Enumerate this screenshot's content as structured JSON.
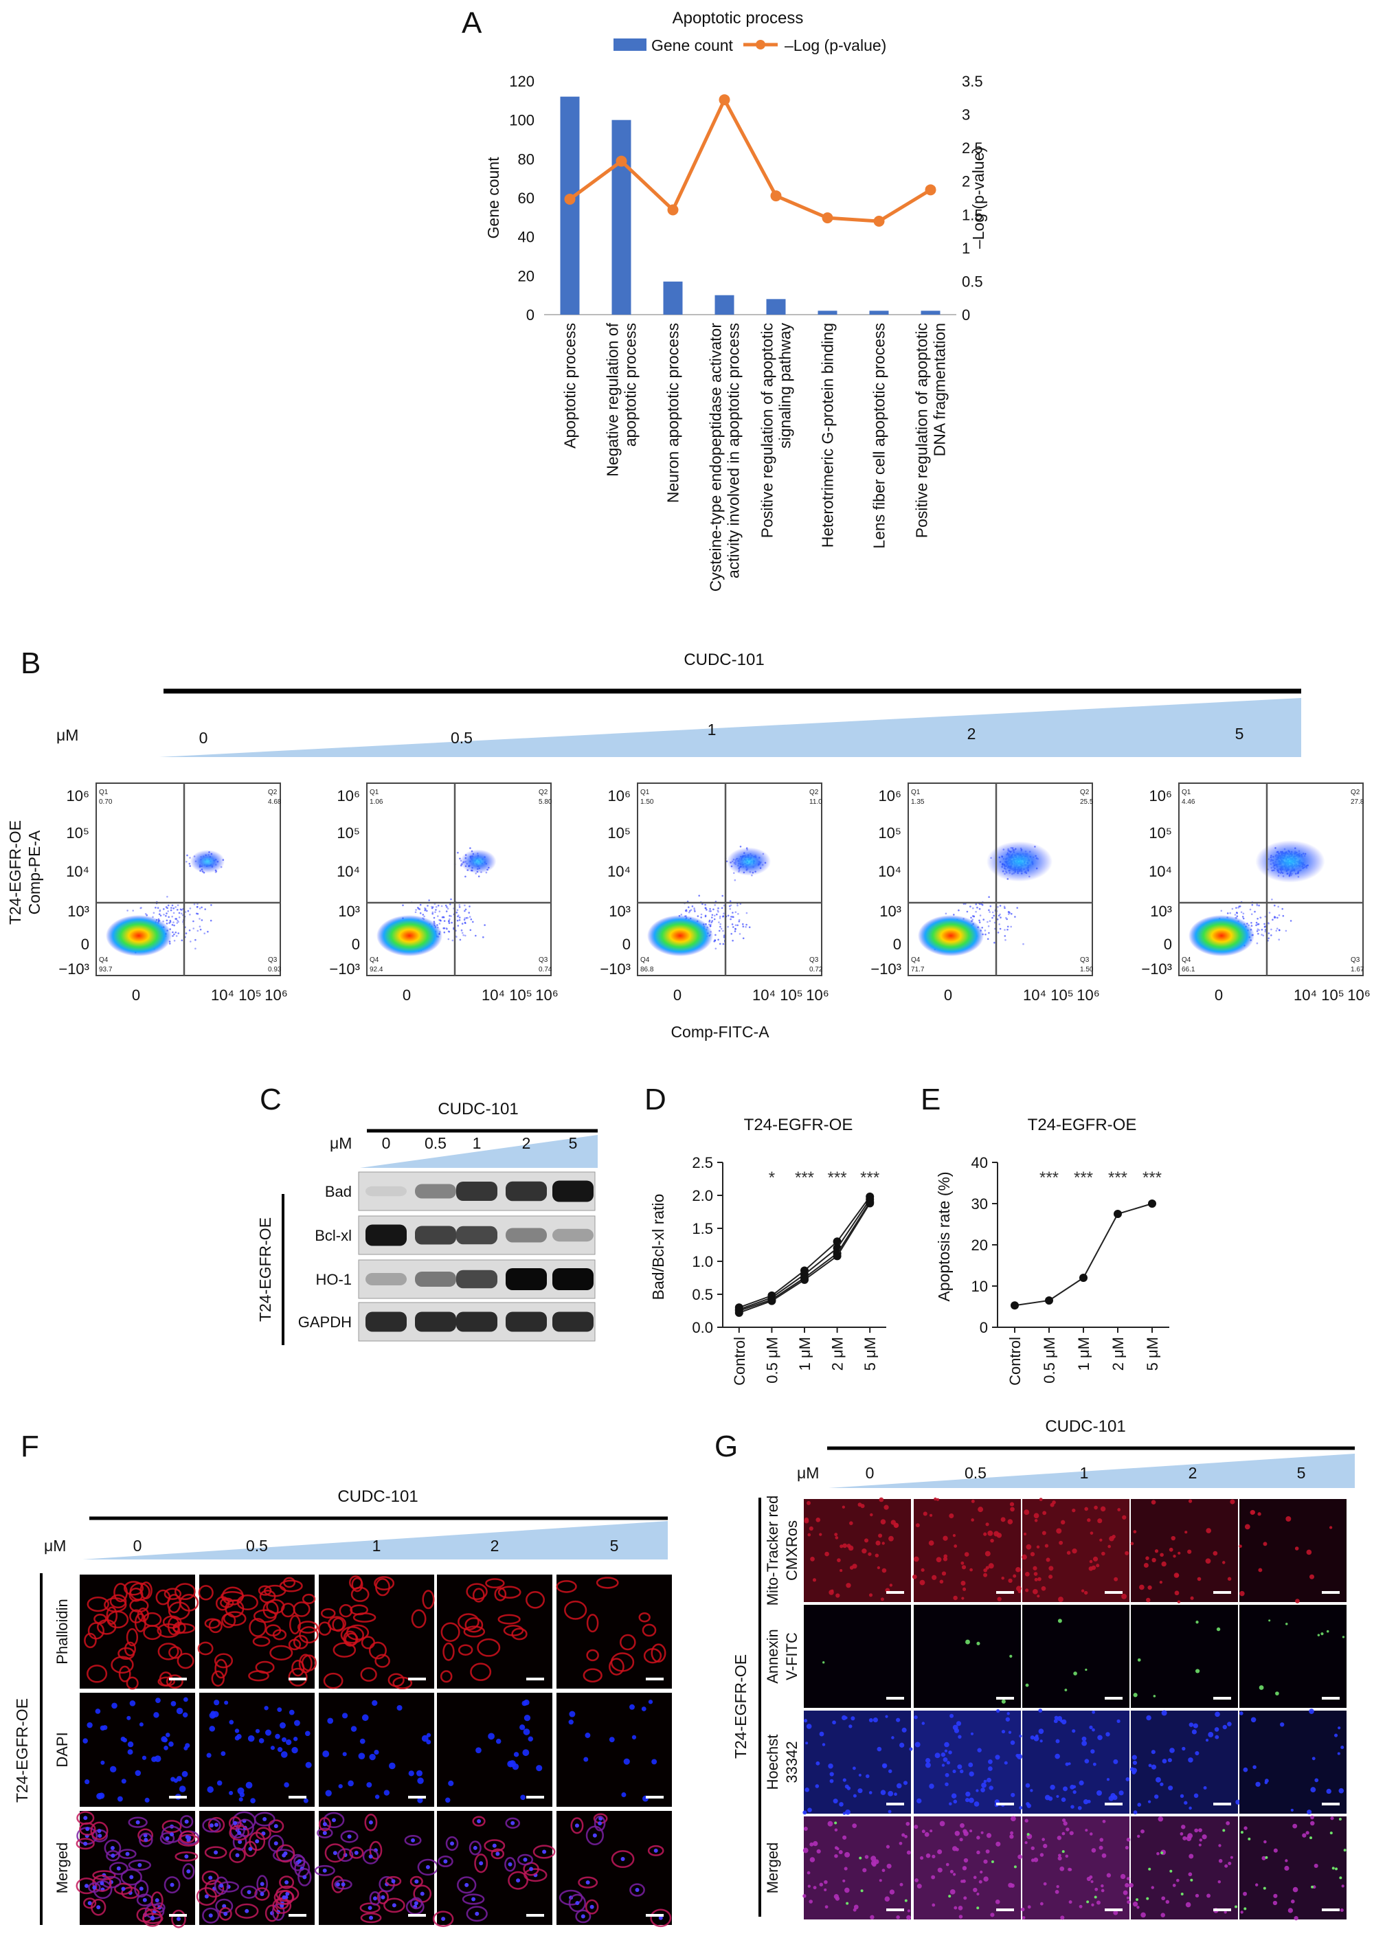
{
  "panels": {
    "A": "A",
    "B": "B",
    "C": "C",
    "D": "D",
    "E": "E",
    "F": "F",
    "G": "G"
  },
  "colors": {
    "bar": "#4472C4",
    "line": "#ED7D31",
    "wedge": "#b3d1ee",
    "phalloidin": "#d0101c",
    "dapi": "#1a2cff",
    "mito": "#c0142a",
    "annexin": "#6fe06a",
    "hoechst": "#2a3bff",
    "merged": "#b02fb8"
  },
  "common": {
    "drug": "CUDC-101",
    "unit": "μM",
    "conc": [
      "0",
      "0.5",
      "1",
      "2",
      "5"
    ],
    "cell_line": "T24-EGFR-OE"
  },
  "chart_data": [
    {
      "id": "A",
      "type": "bar",
      "title": "Apoptotic process",
      "legend": [
        "Gene count",
        "–Log (p-value)"
      ],
      "legend_position": "top",
      "categories": [
        [
          "Apoptotic process"
        ],
        [
          "Negative regulation of",
          "apoptotic process"
        ],
        [
          "Neuron apoptotic process"
        ],
        [
          "Cysteine-type endopeptidase activator",
          "activity involved in apoptotic process"
        ],
        [
          "Positive regulation of apoptotic",
          "signaling pathway"
        ],
        [
          "Heterotrimeric G-protein binding"
        ],
        [
          "Lens fiber cell apoptotic process"
        ],
        [
          "Positive regulation of apoptotic",
          "DNA fragmentation"
        ]
      ],
      "series": [
        {
          "name": "Gene count",
          "type": "bar",
          "axis": "left",
          "values": [
            112,
            100,
            17,
            10,
            8,
            2,
            2,
            2
          ]
        },
        {
          "name": "–Log (p-value)",
          "type": "line",
          "axis": "right",
          "values": [
            1.73,
            2.3,
            1.57,
            3.22,
            1.78,
            1.45,
            1.4,
            1.87
          ]
        }
      ],
      "ylabel": "Gene count",
      "y2label": "–Log (p-value)",
      "ylim": [
        0,
        120
      ],
      "y2lim": [
        0,
        3.5
      ],
      "yticks": [
        "0",
        "20",
        "40",
        "60",
        "80",
        "100",
        "120"
      ],
      "y2ticks": [
        "0",
        "0.5",
        "1",
        "1.5",
        "2",
        "2.5",
        "3",
        "3.5"
      ]
    },
    {
      "id": "B",
      "type": "scatter",
      "xlabel": "Comp-FITC-A",
      "ylabel": [
        "T24-EGFR-OE",
        "Comp-PE-A"
      ],
      "yticks": [
        "10⁶",
        "10⁵",
        "10⁴",
        "10³",
        "0",
        "−10³"
      ],
      "xticks": [
        "0",
        "10⁴",
        "10⁵",
        "10⁶"
      ],
      "plots": [
        {
          "conc": "0",
          "Q1": "0.70",
          "Q2": "4.68",
          "Q3": "0.93",
          "Q4": "93.7"
        },
        {
          "conc": "0.5",
          "Q1": "1.06",
          "Q2": "5.80",
          "Q3": "0.74",
          "Q4": "92.4"
        },
        {
          "conc": "1",
          "Q1": "1.50",
          "Q2": "11.0",
          "Q3": "0.72",
          "Q4": "86.8"
        },
        {
          "conc": "2",
          "Q1": "1.35",
          "Q2": "25.5",
          "Q3": "1.50",
          "Q4": "71.7"
        },
        {
          "conc": "5",
          "Q1": "4.46",
          "Q2": "27.8",
          "Q3": "1.67",
          "Q4": "66.1"
        }
      ],
      "quadrants": [
        "Q1",
        "Q2",
        "Q3",
        "Q4"
      ]
    },
    {
      "id": "D",
      "type": "line",
      "title": "T24-EGFR-OE",
      "ylabel": "Bad/Bcl-xl ratio",
      "categories": [
        "Control",
        "0.5 μM",
        "1 μM",
        "2 μM",
        "5 μM"
      ],
      "ylim": [
        0,
        2.5
      ],
      "yticks": [
        "0.0",
        "0.5",
        "1.0",
        "1.5",
        "2.0",
        "2.5"
      ],
      "series": [
        {
          "values": [
            0.3,
            0.48,
            0.86,
            1.3,
            1.98
          ]
        },
        {
          "values": [
            0.27,
            0.45,
            0.8,
            1.2,
            1.94
          ]
        },
        {
          "values": [
            0.25,
            0.42,
            0.75,
            1.12,
            1.9
          ]
        },
        {
          "values": [
            0.22,
            0.4,
            0.72,
            1.08,
            1.88
          ]
        }
      ],
      "significance": [
        "",
        "*",
        "***",
        "***",
        "***"
      ]
    },
    {
      "id": "E",
      "type": "line",
      "title": "T24-EGFR-OE",
      "ylabel": "Apoptosis rate (%)",
      "categories": [
        "Control",
        "0.5 μM",
        "1 μM",
        "2 μM",
        "5 μM"
      ],
      "ylim": [
        0,
        40
      ],
      "yticks": [
        "0",
        "10",
        "20",
        "30",
        "40"
      ],
      "series": [
        {
          "values": [
            5.3,
            6.5,
            12,
            27.5,
            30
          ]
        }
      ],
      "significance": [
        "",
        "***",
        "***",
        "***",
        "***"
      ]
    }
  ],
  "westernC": {
    "rows": [
      "Bad",
      "Bcl-xl",
      "HO-1",
      "GAPDH"
    ],
    "intensity": [
      [
        0.12,
        0.45,
        0.8,
        0.82,
        0.95
      ],
      [
        0.95,
        0.75,
        0.72,
        0.45,
        0.32
      ],
      [
        0.3,
        0.5,
        0.72,
        1.0,
        1.0
      ],
      [
        0.85,
        0.85,
        0.85,
        0.85,
        0.85
      ]
    ]
  },
  "panelF": {
    "rows": [
      "Phalloidin",
      "DAPI",
      "Merged"
    ],
    "cell_density": [
      1.0,
      0.95,
      0.55,
      0.35,
      0.22
    ]
  },
  "panelG": {
    "rows": [
      [
        "Mito-Tracker red",
        "CMXRos"
      ],
      [
        "Annexin",
        "V-FITC"
      ],
      [
        "Hoechst",
        "33342"
      ],
      [
        "Merged"
      ]
    ],
    "brightness": [
      [
        0.7,
        0.75,
        0.8,
        0.45,
        0.2
      ],
      [
        0.02,
        0.12,
        0.15,
        0.2,
        0.28
      ],
      [
        0.7,
        0.85,
        0.75,
        0.55,
        0.28
      ],
      [
        0.75,
        0.8,
        0.8,
        0.55,
        0.35
      ]
    ]
  }
}
